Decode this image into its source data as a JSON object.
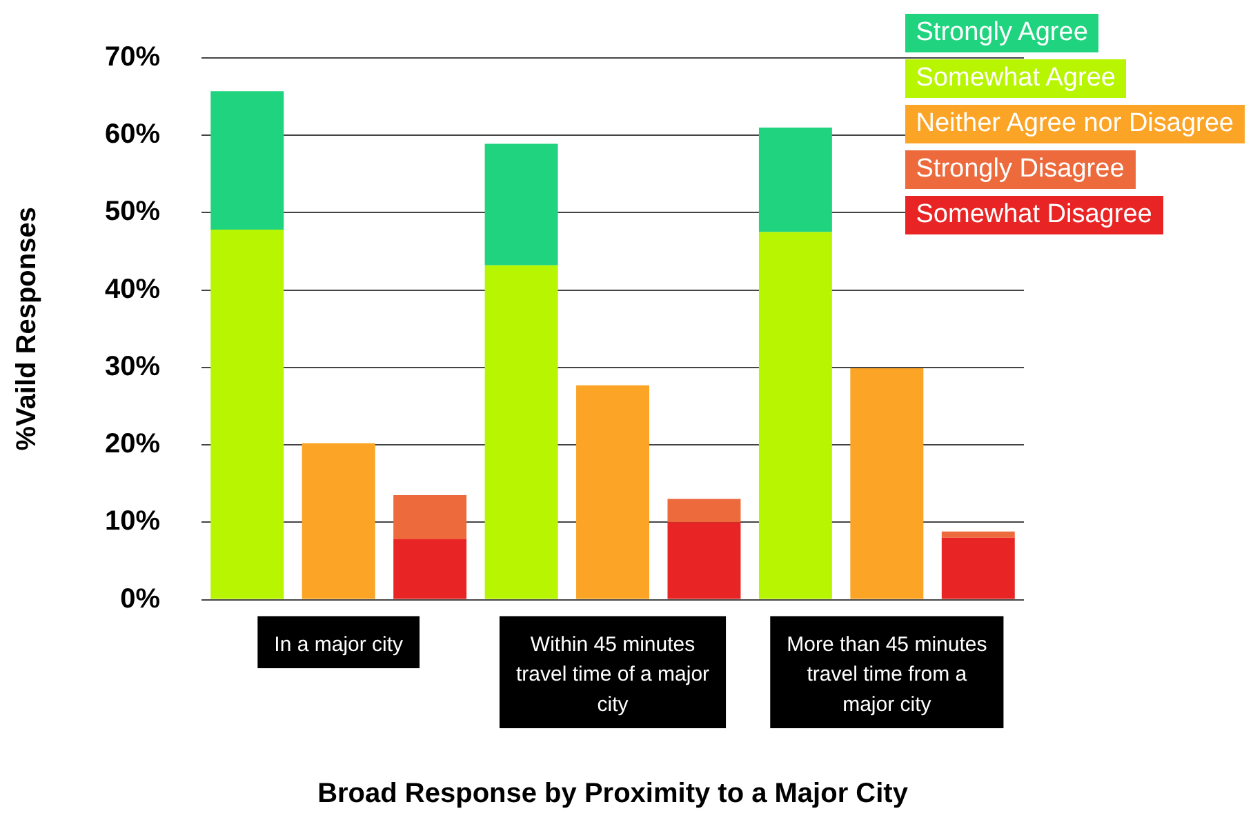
{
  "chart_data": {
    "type": "bar",
    "stacked": true,
    "xlabel": "Broad Response by Proximity to a Major City",
    "ylabel": "%Vaild Responses",
    "categories": [
      null,
      "In a major city",
      null,
      null,
      "Within 45 minutes travel time of a major city",
      null,
      null,
      "More than 45 minutes travel time from a major city",
      null
    ],
    "series": [
      {
        "name": "Somewhat Agree",
        "color": "#b7f500",
        "values": [
          47.8,
          null,
          null,
          43.2,
          null,
          null,
          47.5,
          null,
          null
        ]
      },
      {
        "name": "Strongly Agree",
        "color": "#20d47f",
        "values": [
          17.9,
          null,
          null,
          15.7,
          null,
          null,
          13.5,
          null,
          null
        ]
      },
      {
        "name": "Neither Agree nor Disagree",
        "color": "#fba425",
        "values": [
          null,
          20.2,
          null,
          null,
          27.7,
          null,
          null,
          29.9,
          null
        ]
      },
      {
        "name": "Somewhat Disagree",
        "color": "#e82424",
        "values": [
          null,
          null,
          7.8,
          null,
          null,
          10.0,
          null,
          null,
          8.0
        ]
      },
      {
        "name": "Strongly Disagree",
        "color": "#ec6a3c",
        "values": [
          null,
          null,
          5.7,
          null,
          null,
          3.0,
          null,
          null,
          0.8
        ]
      }
    ],
    "ylim": [
      0,
      70
    ],
    "yticks": [
      {
        "value": 0,
        "label": "0%"
      },
      {
        "value": 10,
        "label": "10%"
      },
      {
        "value": 20,
        "label": "20%"
      },
      {
        "value": 30,
        "label": "30%"
      },
      {
        "value": 40,
        "label": "40%"
      },
      {
        "value": 50,
        "label": "50%"
      },
      {
        "value": 60,
        "label": "60%"
      },
      {
        "value": 70,
        "label": "70%"
      }
    ],
    "grid": "y",
    "legend": "top right"
  }
}
